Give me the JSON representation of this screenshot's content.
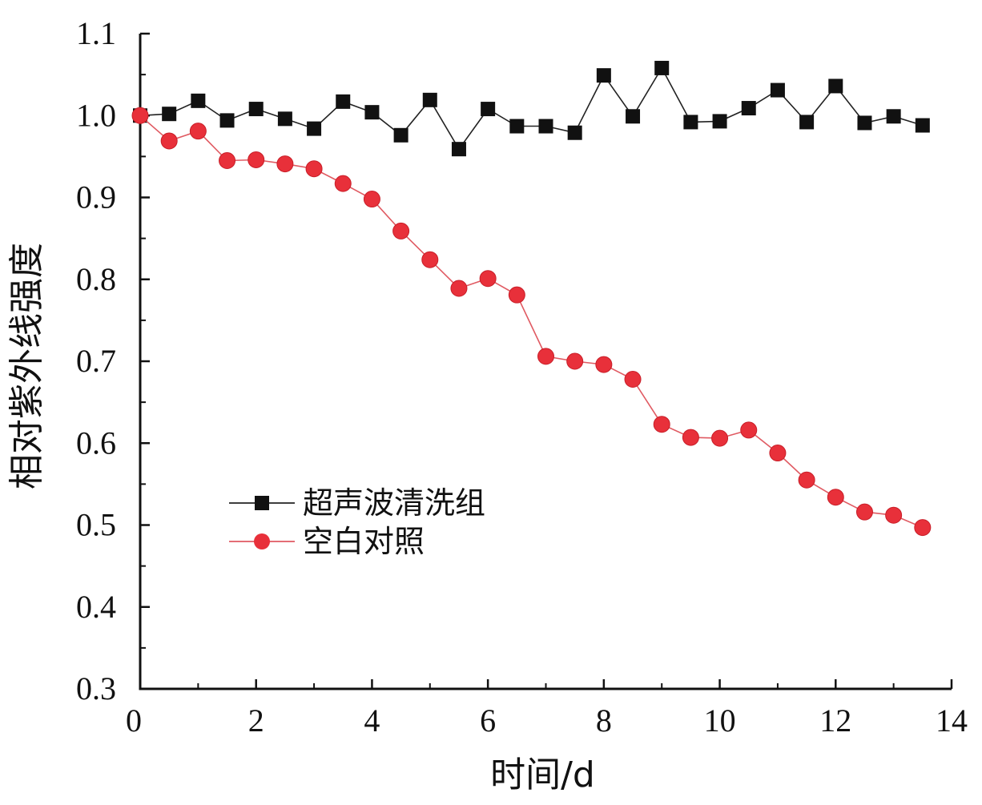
{
  "chart_data": {
    "type": "line",
    "title": "",
    "xlabel": "时间/d",
    "ylabel": "相对紫外线强度",
    "xlim": [
      0,
      14
    ],
    "ylim": [
      0.3,
      1.1
    ],
    "xticks": [
      "0",
      "2",
      "4",
      "6",
      "8",
      "10",
      "12",
      "14"
    ],
    "yticks": [
      "0.3",
      "0.4",
      "0.5",
      "0.6",
      "0.7",
      "0.8",
      "0.9",
      "1.0",
      "1.1"
    ],
    "grid": false,
    "legend_position": "center-left",
    "x": [
      0,
      0.5,
      1,
      1.5,
      2,
      2.5,
      3,
      3.5,
      4,
      4.5,
      5,
      5.5,
      6,
      6.5,
      7,
      7.5,
      8,
      8.5,
      9,
      9.5,
      10,
      10.5,
      11,
      11.5,
      12,
      12.5,
      13,
      13.5
    ],
    "series": [
      {
        "name": "超声波清洗组",
        "marker": "square",
        "color": "#111111",
        "values": [
          1.0,
          1.002,
          1.018,
          0.994,
          1.008,
          0.996,
          0.984,
          1.017,
          1.004,
          0.976,
          1.019,
          0.959,
          1.008,
          0.987,
          0.987,
          0.979,
          1.049,
          0.999,
          1.058,
          0.992,
          0.993,
          1.009,
          1.031,
          0.992,
          1.036,
          0.991,
          0.999,
          0.988
        ]
      },
      {
        "name": "空白对照",
        "marker": "circle",
        "color": "#e8303a",
        "values": [
          1.0,
          0.969,
          0.981,
          0.945,
          0.946,
          0.941,
          0.935,
          0.917,
          0.898,
          0.859,
          0.824,
          0.789,
          0.801,
          0.781,
          0.706,
          0.7,
          0.696,
          0.678,
          0.623,
          0.607,
          0.606,
          0.616,
          0.588,
          0.555,
          0.534,
          0.516,
          0.512,
          0.497
        ]
      }
    ]
  }
}
